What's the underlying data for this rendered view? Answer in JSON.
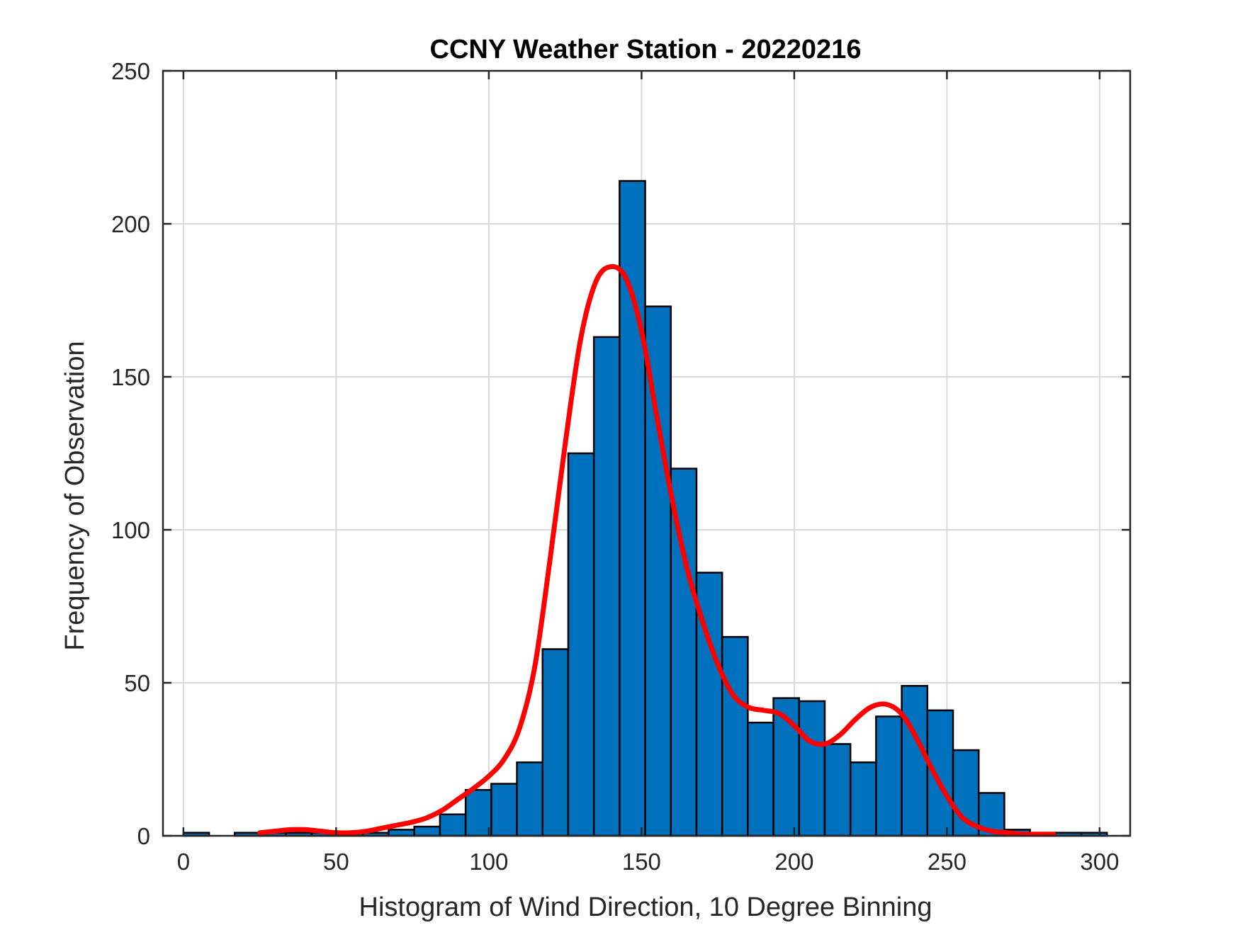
{
  "chart_data": {
    "type": "bar",
    "title": "CCNY Weather Station - 20220216",
    "xlabel": "Histogram of Wind Direction, 10 Degree Binning",
    "ylabel": "Frequency of Observation",
    "xlim": [
      -6.7,
      310
    ],
    "ylim": [
      0,
      250
    ],
    "xticks": [
      0,
      50,
      100,
      150,
      200,
      250,
      300
    ],
    "yticks": [
      0,
      50,
      100,
      150,
      200,
      250
    ],
    "grid": true,
    "bin_width": 8.4,
    "bins": [
      {
        "start": 0,
        "count": 1
      },
      {
        "start": 16.8,
        "count": 1
      },
      {
        "start": 25.2,
        "count": 1
      },
      {
        "start": 33.6,
        "count": 1
      },
      {
        "start": 42.0,
        "count": 1
      },
      {
        "start": 50.4,
        "count": 1
      },
      {
        "start": 58.8,
        "count": 1
      },
      {
        "start": 67.2,
        "count": 2
      },
      {
        "start": 75.6,
        "count": 3
      },
      {
        "start": 84.0,
        "count": 7
      },
      {
        "start": 92.4,
        "count": 15
      },
      {
        "start": 100.8,
        "count": 17
      },
      {
        "start": 109.2,
        "count": 24
      },
      {
        "start": 117.6,
        "count": 61
      },
      {
        "start": 126.0,
        "count": 125
      },
      {
        "start": 134.4,
        "count": 163
      },
      {
        "start": 142.8,
        "count": 214
      },
      {
        "start": 151.2,
        "count": 173
      },
      {
        "start": 159.6,
        "count": 120
      },
      {
        "start": 168.0,
        "count": 86
      },
      {
        "start": 176.4,
        "count": 65
      },
      {
        "start": 184.8,
        "count": 37
      },
      {
        "start": 193.2,
        "count": 45
      },
      {
        "start": 201.6,
        "count": 44
      },
      {
        "start": 210.0,
        "count": 30
      },
      {
        "start": 218.4,
        "count": 24
      },
      {
        "start": 226.8,
        "count": 39
      },
      {
        "start": 235.2,
        "count": 49
      },
      {
        "start": 243.6,
        "count": 41
      },
      {
        "start": 252.0,
        "count": 28
      },
      {
        "start": 260.4,
        "count": 14
      },
      {
        "start": 268.8,
        "count": 2
      },
      {
        "start": 277.2,
        "count": 1
      },
      {
        "start": 285.6,
        "count": 1
      },
      {
        "start": 294.0,
        "count": 1
      }
    ],
    "fit_curve": {
      "x": [
        25,
        30,
        35,
        40,
        45,
        50,
        55,
        60,
        65,
        70,
        75,
        80,
        85,
        90,
        95,
        100,
        105,
        110,
        115,
        120,
        125,
        130,
        135,
        140,
        145,
        150,
        155,
        160,
        165,
        170,
        175,
        180,
        185,
        190,
        195,
        200,
        205,
        210,
        215,
        220,
        225,
        230,
        235,
        240,
        245,
        250,
        255,
        260,
        265,
        270,
        275,
        280,
        285
      ],
      "y": [
        1,
        1.5,
        2,
        2,
        1.5,
        1,
        1,
        1.5,
        2.5,
        3.5,
        4.5,
        6,
        8.5,
        12,
        15.5,
        19.5,
        25,
        35,
        55,
        90,
        128,
        162,
        181,
        186,
        182,
        165,
        137,
        110,
        87,
        70,
        56,
        46,
        42,
        41,
        40,
        36,
        31,
        30,
        33,
        38,
        42,
        43,
        40,
        32,
        22,
        13,
        6,
        3,
        1.5,
        1,
        0.5,
        0.5,
        0.5
      ]
    },
    "colors": {
      "bar_fill": "#0072BD",
      "bar_edge": "#000000",
      "curve": "#FF0000",
      "grid": "#DADADA",
      "axis": "#262626"
    }
  }
}
